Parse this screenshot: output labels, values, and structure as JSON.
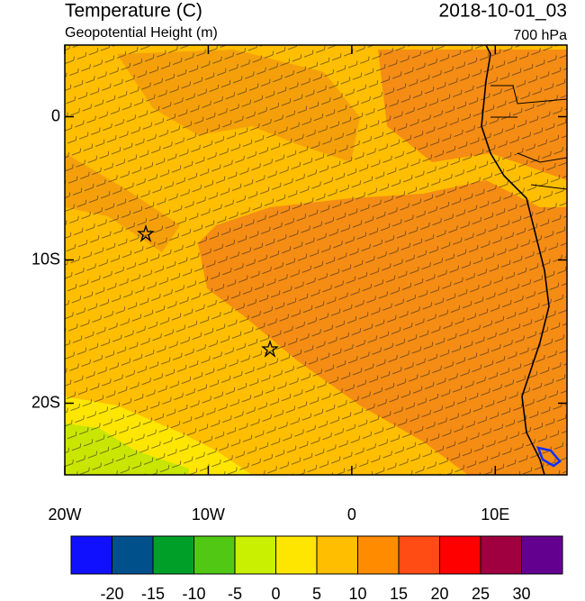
{
  "map": {
    "title": "Temperature (C)",
    "subtitle": "Geopotential Height (m)",
    "date": "2018-10-01_03",
    "level": "700 hPa",
    "xlim": [
      -20,
      15
    ],
    "ylim": [
      -25,
      5
    ],
    "xticks": [
      {
        "value": -20,
        "label": "20W"
      },
      {
        "value": -10,
        "label": "10W"
      },
      0,
      {
        "value": 10,
        "label": "10E"
      }
    ],
    "yticks": [
      0,
      {
        "value": -10,
        "label": "10S"
      },
      {
        "value": -20,
        "label": "20S"
      }
    ],
    "colorbar": {
      "levels": [
        -20,
        -15,
        -10,
        -5,
        0,
        5,
        10,
        15,
        20,
        25,
        30
      ],
      "colors": [
        "#1010ff",
        "#00508c",
        "#00a028",
        "#50c814",
        "#c8f000",
        "#ffe600",
        "#ffbe00",
        "#ff8c00",
        "#ff4b14",
        "#ff0000",
        "#a00040",
        "#640090"
      ]
    }
  }
}
